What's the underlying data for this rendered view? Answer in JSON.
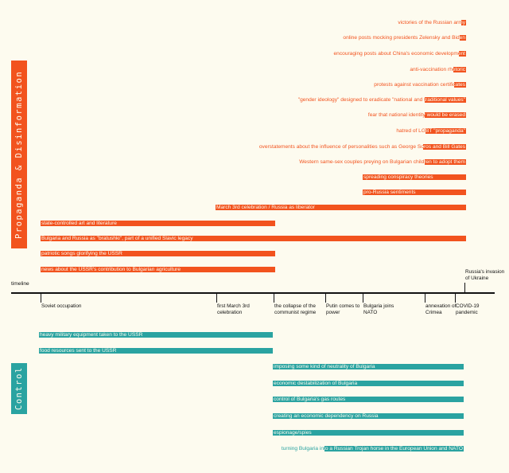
{
  "colors": {
    "propaganda": "#f2531e",
    "control": "#2aa3a1",
    "background": "#fdfbef",
    "axis": "#111111"
  },
  "sections": {
    "propaganda": "Propaganda & Disinformation",
    "control": "Control"
  },
  "axis_title": "timeline",
  "events": [
    {
      "label": "Soviet occupation"
    },
    {
      "label": "first March 3rd celebration"
    },
    {
      "label": "the collapse of the communist regime"
    },
    {
      "label": "Putin comes to power"
    },
    {
      "label": "Bulgaria joins NATO"
    },
    {
      "label": "annexation of Crimea"
    },
    {
      "label": "COVID-19 pandemic"
    },
    {
      "label": "Russia's invasion of Ukraine"
    }
  ],
  "propaganda_items": [
    {
      "label": "victories of the Russian army"
    },
    {
      "label": "online posts mocking presidents Zelensky and Biden"
    },
    {
      "label": "encouraging posts about China's economic development"
    },
    {
      "label": "anti-vaccination rhetoric"
    },
    {
      "label": "protests against vaccination certificates"
    },
    {
      "label": "\"gender ideology\" designed to eradicate \"national and traditional values\""
    },
    {
      "label": "fear that national identity would be erased"
    },
    {
      "label": "hatred of LGBT \"propaganda\""
    },
    {
      "label": "overstatements about the influence of personalities such as George Soros and Bill Gates"
    },
    {
      "label": "Western same-sex couples preying on Bulgarian children to adopt them"
    },
    {
      "label": "spreading conspiracy theories"
    },
    {
      "label": "pro-Russia sentiments"
    },
    {
      "label": "March 3rd celebration / Russia as liberator"
    },
    {
      "label": "state-controlled art and literature"
    },
    {
      "label": "Bulgaria and Russia as \"bratushki\", part of a unified Slavic legacy"
    },
    {
      "label": "patriotic songs glorifying the USSR"
    },
    {
      "label": "news about the USSR's contribution to Bulgarian agriculture"
    }
  ],
  "control_items": [
    {
      "label": "heavy military equipment taken to the USSR"
    },
    {
      "label": "food resources sent to the USSR"
    },
    {
      "label": "imposing some kind of neutrality of Bulgaria"
    },
    {
      "label": "economic destabilization of Bulgaria"
    },
    {
      "label": "control of Bulgaria's gas routes"
    },
    {
      "label": "creating an economic dependency on Russia"
    },
    {
      "label": "espionage/spies"
    },
    {
      "label": "turning Bulgaria into a Russian Trojan horse in the European Union and NATO"
    }
  ]
}
